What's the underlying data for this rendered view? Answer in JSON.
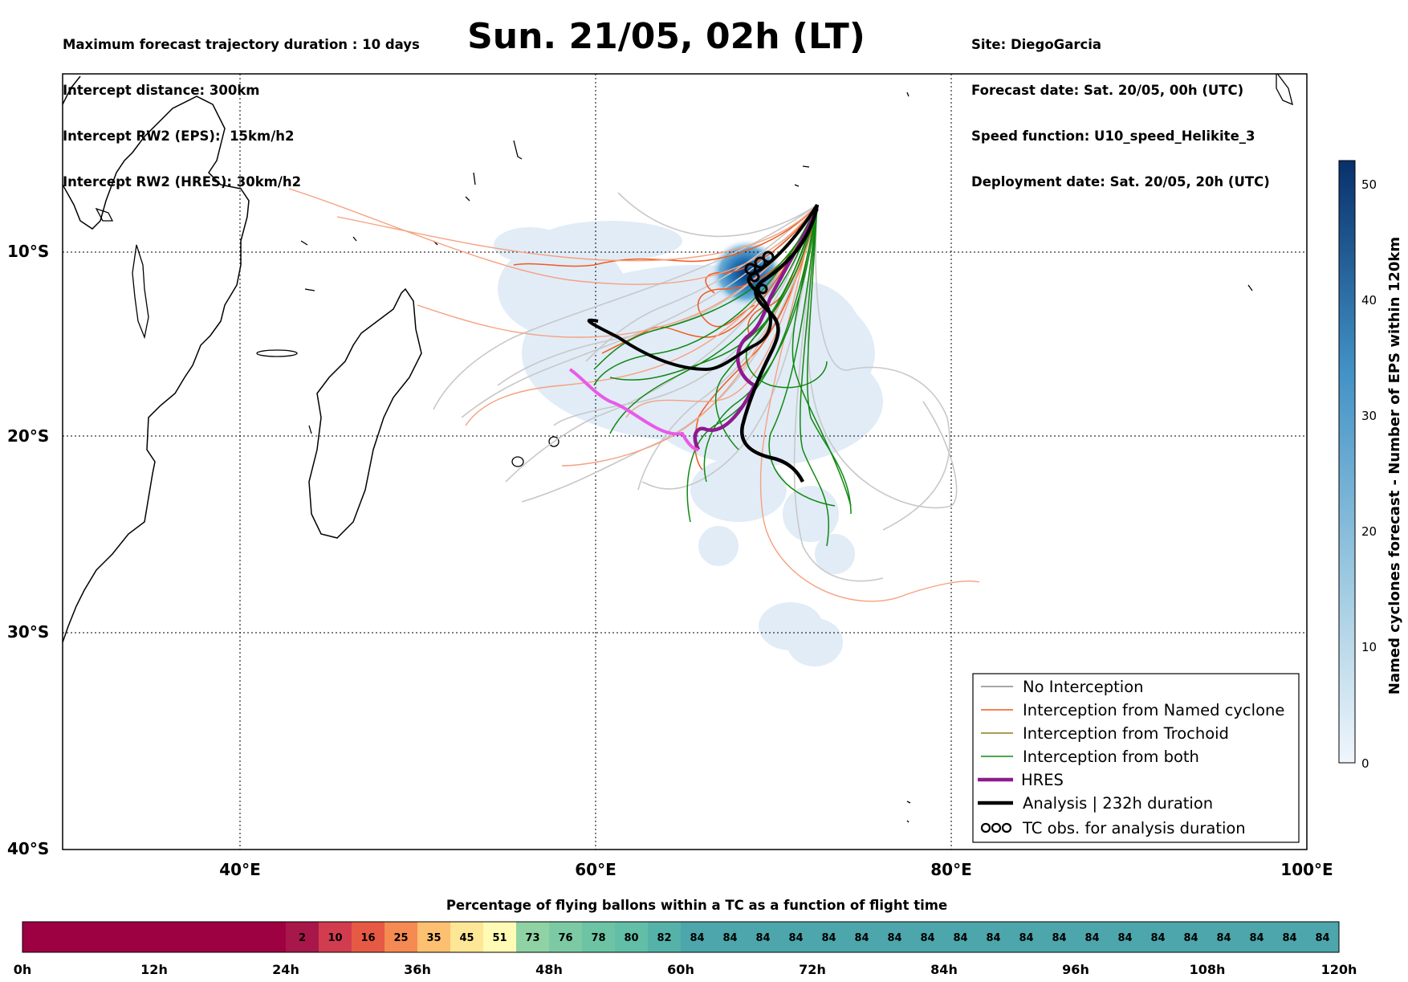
{
  "header_left": [
    "Maximum forecast trajectory duration : 10 days",
    "Intercept distance: 300km",
    "Intercept RW2 (EPS):  15km/h2",
    "Intercept RW2 (HRES): 30km/h2"
  ],
  "title": "Sun. 21/05, 02h (LT)",
  "header_right": [
    "Site: DiegoGarcia",
    "Forecast date: Sat. 20/05, 00h (UTC)",
    "Speed function: U10_speed_Helikite_3",
    "Deployment date: Sat. 20/05, 20h (UTC)"
  ],
  "map": {
    "lat_labels": [
      "10°S",
      "20°S",
      "30°S",
      "40°S"
    ],
    "lon_labels": [
      "40°E",
      "60°E",
      "80°E",
      "100°E"
    ],
    "extent": {
      "lon": [
        30,
        100
      ],
      "lat": [
        -40,
        0
      ]
    }
  },
  "legend": {
    "items": [
      {
        "label": "No Interception",
        "color": "#888888"
      },
      {
        "label": "Interception from Named cyclone",
        "color": "#f05a1e"
      },
      {
        "label": "Interception from Trochoid",
        "color": "#8b7d1a"
      },
      {
        "label": "Interception from both",
        "color": "#118811"
      },
      {
        "label": "HRES",
        "color": "#8e1a8e"
      },
      {
        "label": "Analysis | 232h duration",
        "color": "#000000"
      },
      {
        "label": "TC obs. for analysis duration",
        "color": "#000000",
        "icon": "cyclone-symbol-icon"
      }
    ]
  },
  "right_colorbar": {
    "label": "Named cyclones forecast - Number of EPS within 120km",
    "ticks": [
      "0",
      "10",
      "20",
      "30",
      "40",
      "50"
    ],
    "range": [
      0,
      52
    ],
    "colors": [
      "#deebf7",
      "#9ecae1",
      "#4292c6",
      "#08306b"
    ]
  },
  "bottom_bar": {
    "title": "Percentage of flying ballons within a TC as a function of flight time",
    "time_labels": [
      "0h",
      "12h",
      "24h",
      "36h",
      "48h",
      "60h",
      "72h",
      "84h",
      "96h",
      "108h",
      "120h"
    ],
    "cells": [
      {
        "label": "",
        "color": "#9e0142"
      },
      {
        "label": "",
        "color": "#9e0142"
      },
      {
        "label": "",
        "color": "#9e0142"
      },
      {
        "label": "",
        "color": "#9e0142"
      },
      {
        "label": "",
        "color": "#9e0142"
      },
      {
        "label": "",
        "color": "#9e0142"
      },
      {
        "label": "",
        "color": "#9e0142"
      },
      {
        "label": "",
        "color": "#9e0142"
      },
      {
        "label": "2",
        "color": "#a8174a"
      },
      {
        "label": "10",
        "color": "#d23c4f"
      },
      {
        "label": "16",
        "color": "#e65a45"
      },
      {
        "label": "25",
        "color": "#f58a52"
      },
      {
        "label": "35",
        "color": "#fcc070"
      },
      {
        "label": "45",
        "color": "#fde696"
      },
      {
        "label": "51",
        "color": "#fffbb5"
      },
      {
        "label": "73",
        "color": "#8fd2a3"
      },
      {
        "label": "76",
        "color": "#7ccaa4"
      },
      {
        "label": "78",
        "color": "#6dc4a5"
      },
      {
        "label": "80",
        "color": "#62bea6"
      },
      {
        "label": "82",
        "color": "#55b2a9"
      },
      {
        "label": "84",
        "color": "#4ca6ab"
      },
      {
        "label": "84",
        "color": "#4ca6ab"
      },
      {
        "label": "84",
        "color": "#4ca6ab"
      },
      {
        "label": "84",
        "color": "#4ca6ab"
      },
      {
        "label": "84",
        "color": "#4ca6ab"
      },
      {
        "label": "84",
        "color": "#4ca6ab"
      },
      {
        "label": "84",
        "color": "#4ca6ab"
      },
      {
        "label": "84",
        "color": "#4ca6ab"
      },
      {
        "label": "84",
        "color": "#4ca6ab"
      },
      {
        "label": "84",
        "color": "#4ca6ab"
      },
      {
        "label": "84",
        "color": "#4ca6ab"
      },
      {
        "label": "84",
        "color": "#4ca6ab"
      },
      {
        "label": "84",
        "color": "#4ca6ab"
      },
      {
        "label": "84",
        "color": "#4ca6ab"
      },
      {
        "label": "84",
        "color": "#4ca6ab"
      },
      {
        "label": "84",
        "color": "#4ca6ab"
      },
      {
        "label": "84",
        "color": "#4ca6ab"
      },
      {
        "label": "84",
        "color": "#4ca6ab"
      },
      {
        "label": "84",
        "color": "#4ca6ab"
      },
      {
        "label": "84",
        "color": "#4ca6ab"
      }
    ]
  }
}
